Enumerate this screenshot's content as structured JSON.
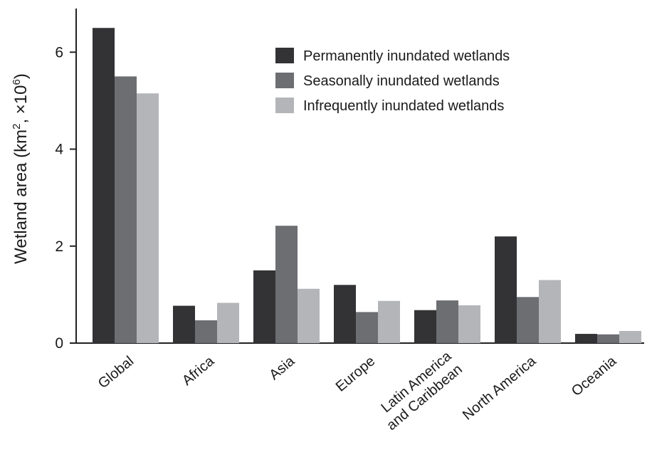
{
  "chart_data": {
    "type": "bar",
    "ylabel": "Wetland area (km², ×10⁶)",
    "ylabel_parts": {
      "prefix": "Wetland area (km",
      "sup1": "2",
      "mid": ", ×10",
      "sup2": "6",
      "suffix": ")"
    },
    "ylim": [
      0,
      6.9
    ],
    "yticks": [
      0,
      2,
      4,
      6
    ],
    "grid": false,
    "legend_position": "top-right",
    "categories": [
      [
        "Global"
      ],
      [
        "Africa"
      ],
      [
        "Asia"
      ],
      [
        "Europe"
      ],
      [
        "Latin America",
        "and Caribbean"
      ],
      [
        "North America"
      ],
      [
        "Oceania"
      ]
    ],
    "series": [
      {
        "name": "Permanently inundated wetlands",
        "color": "#333336",
        "values": [
          6.5,
          0.77,
          1.5,
          1.2,
          0.68,
          2.2,
          0.19
        ]
      },
      {
        "name": "Seasonally inundated wetlands",
        "color": "#6d6e72",
        "values": [
          5.5,
          0.47,
          2.42,
          0.64,
          0.88,
          0.95,
          0.18
        ]
      },
      {
        "name": "Infrequently inundated wetlands",
        "color": "#b4b5b9",
        "values": [
          5.15,
          0.83,
          1.12,
          0.87,
          0.78,
          1.3,
          0.25
        ]
      }
    ]
  }
}
